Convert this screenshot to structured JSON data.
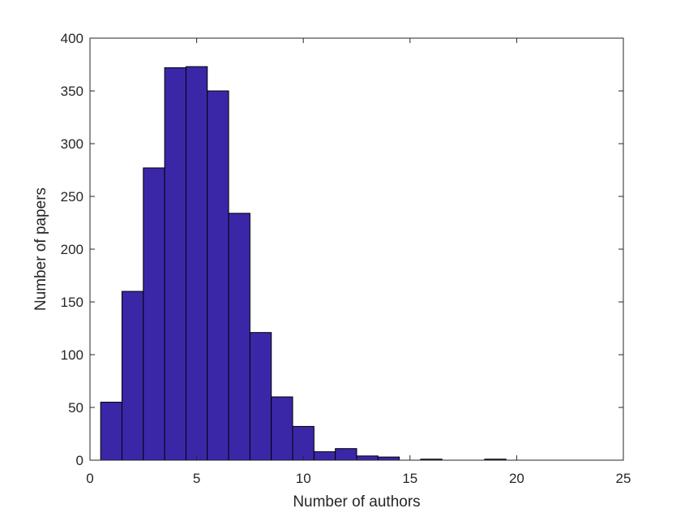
{
  "chart_data": {
    "type": "bar",
    "title": "",
    "xlabel": "Number of authors",
    "ylabel": "Number of papers",
    "xlim": [
      0,
      25
    ],
    "ylim": [
      0,
      400
    ],
    "xticks": [
      "0",
      "5",
      "10",
      "15",
      "20",
      "25"
    ],
    "yticks": [
      "0",
      "50",
      "100",
      "150",
      "200",
      "250",
      "300",
      "350",
      "400"
    ],
    "xtick_values": [
      0,
      5,
      10,
      15,
      20,
      25
    ],
    "ytick_values": [
      0,
      50,
      100,
      150,
      200,
      250,
      300,
      350,
      400
    ],
    "bin_width": 1,
    "x": [
      1,
      2,
      3,
      4,
      5,
      6,
      7,
      8,
      9,
      10,
      11,
      12,
      13,
      14,
      15,
      16,
      17,
      18,
      19,
      20
    ],
    "values": [
      55,
      160,
      277,
      372,
      373,
      350,
      234,
      121,
      60,
      32,
      8,
      11,
      4,
      3,
      0,
      1,
      0,
      0,
      1,
      0
    ],
    "grid": false,
    "legend": "none",
    "bar_color": "#3A27A8",
    "edge_color": "#000000"
  }
}
